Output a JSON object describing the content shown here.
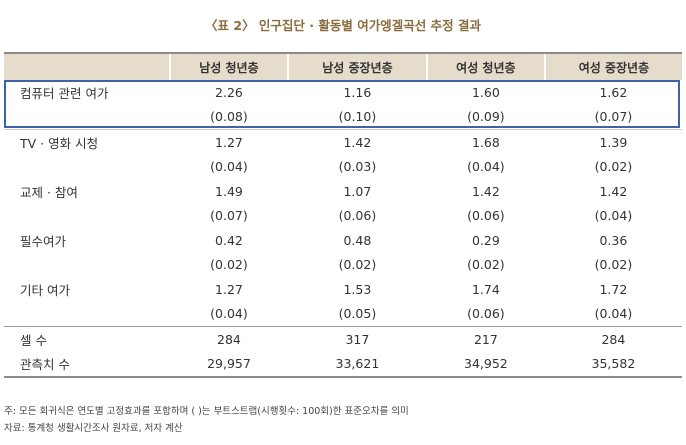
{
  "title": "〈표 2〉 인구집단 · 활동별 여가엥겔곡선 추정 결과",
  "columns": [
    "",
    "남성 청년층",
    "남성 중장년층",
    "여성 청년층",
    "여성 중장년층"
  ],
  "rows": [
    {
      "label": "컴퓨터 관련 여가",
      "coef": [
        "2.26",
        "1.16",
        "1.60",
        "1.62"
      ],
      "se": [
        "(0.08)",
        "(0.10)",
        "(0.09)",
        "(0.07)"
      ]
    },
    {
      "label": "TV · 영화 시청",
      "coef": [
        "1.27",
        "1.42",
        "1.68",
        "1.39"
      ],
      "se": [
        "(0.04)",
        "(0.03)",
        "(0.04)",
        "(0.02)"
      ]
    },
    {
      "label": "교제 · 참여",
      "coef": [
        "1.49",
        "1.07",
        "1.42",
        "1.42"
      ],
      "se": [
        "(0.07)",
        "(0.06)",
        "(0.06)",
        "(0.04)"
      ]
    },
    {
      "label": "필수여가",
      "coef": [
        "0.42",
        "0.48",
        "0.29",
        "0.36"
      ],
      "se": [
        "(0.02)",
        "(0.02)",
        "(0.02)",
        "(0.02)"
      ]
    },
    {
      "label": "기타 여가",
      "coef": [
        "1.27",
        "1.53",
        "1.74",
        "1.72"
      ],
      "se": [
        "(0.04)",
        "(0.05)",
        "(0.06)",
        "(0.04)"
      ]
    }
  ],
  "summary": [
    {
      "label": "셀 수",
      "values": [
        "284",
        "317",
        "217",
        "284"
      ]
    },
    {
      "label": "관측치 수",
      "values": [
        "29,957",
        "33,621",
        "34,952",
        "35,582"
      ]
    }
  ],
  "notes": [
    "주: 모든 회귀식은 연도별 고정효과를 포함하며 ( )는 부트스트랩(시행횟수: 100회)한 표준오차를 의미",
    "자료: 통계청 생활시간조사 원자료, 저자 계산"
  ],
  "colors": {
    "header_bg": "#e6dccb",
    "title": "#8a6d3e",
    "highlight_border": "#3f63a8"
  }
}
